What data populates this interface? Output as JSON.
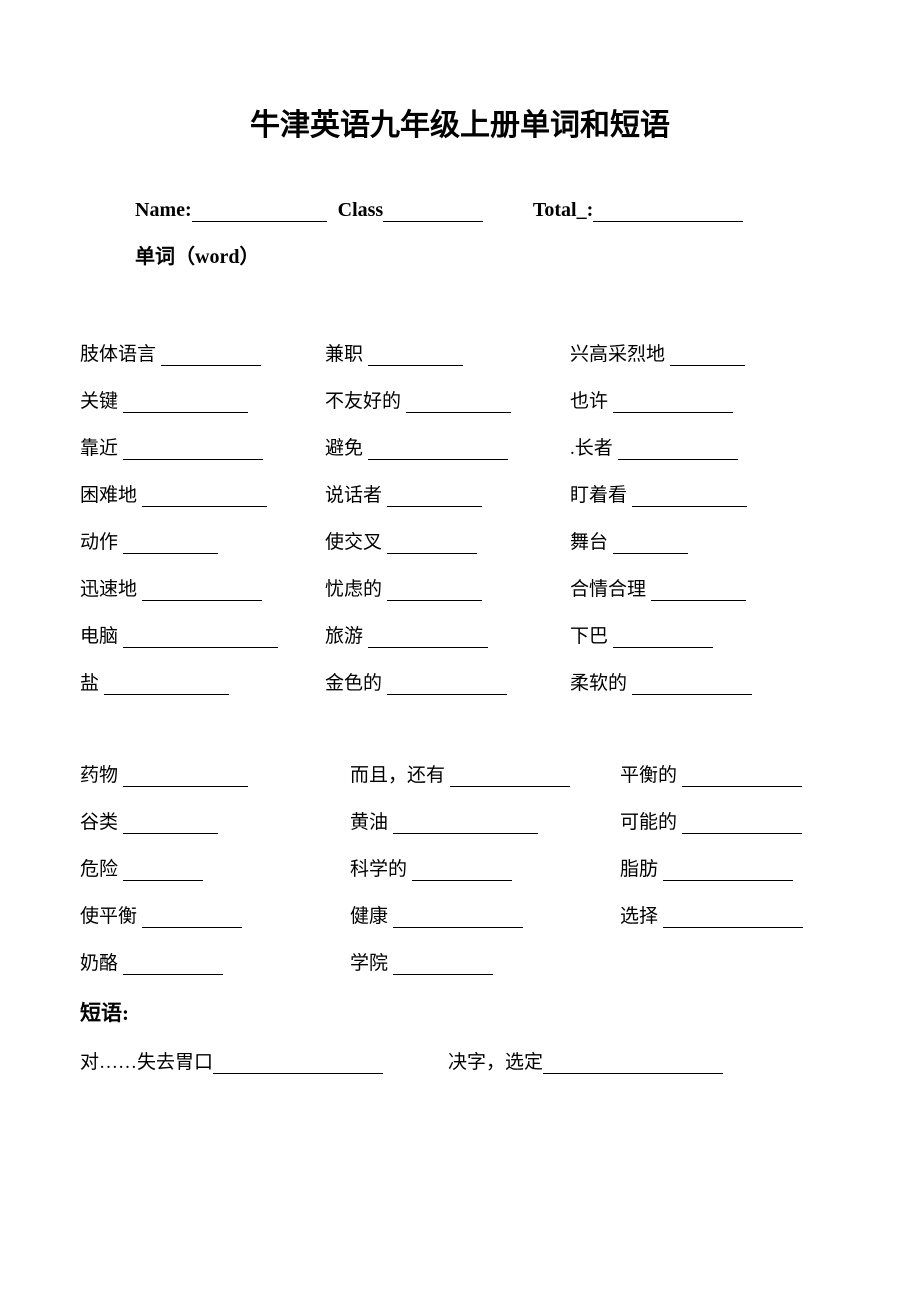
{
  "title": "牛津英语九年级上册单词和短语",
  "header": {
    "name_label": "Name:",
    "class_label": "Class",
    "total_label": "Total_:"
  },
  "subheading": "单词（word）",
  "block1": {
    "rows": [
      [
        "肢体语言",
        "兼职",
        "兴高采烈地"
      ],
      [
        "关键",
        "不友好的",
        "也许"
      ],
      [
        "靠近",
        "避免",
        ".长者"
      ],
      [
        "困难地",
        "说话者",
        "盯着看"
      ],
      [
        "动作",
        "使交叉",
        "舞台"
      ],
      [
        "迅速地",
        "忧虑的",
        "合情合理"
      ],
      [
        "电脑",
        "旅游",
        "下巴"
      ],
      [
        "盐",
        "金色的",
        "柔软的"
      ]
    ],
    "underline_widths": [
      [
        100,
        95,
        75
      ],
      [
        125,
        105,
        120
      ],
      [
        140,
        140,
        120
      ],
      [
        125,
        95,
        115
      ],
      [
        95,
        90,
        75
      ],
      [
        120,
        95,
        95
      ],
      [
        155,
        120,
        100
      ],
      [
        125,
        120,
        120
      ]
    ]
  },
  "block2": {
    "rows": [
      [
        "药物",
        "而且，还有",
        "平衡的"
      ],
      [
        "谷类",
        "黄油",
        "可能的"
      ],
      [
        "危险",
        "科学的",
        "脂肪"
      ],
      [
        "使平衡",
        "健康",
        "选择"
      ],
      [
        "奶酪",
        "学院",
        ""
      ]
    ],
    "underline_widths": [
      [
        125,
        120,
        120
      ],
      [
        95,
        145,
        120
      ],
      [
        80,
        100,
        130
      ],
      [
        100,
        130,
        140
      ],
      [
        100,
        100,
        0
      ]
    ],
    "col_offsets": [
      0,
      20,
      30
    ]
  },
  "phrases": {
    "label": "短语:",
    "items": [
      {
        "text": "对……失去胃口",
        "ul": 170
      },
      {
        "text": "决字，选定",
        "ul": 180
      }
    ],
    "gap": 65
  },
  "colors": {
    "text": "#000000",
    "background": "#ffffff"
  },
  "fonts": {
    "title_size": 30,
    "body_size": 19,
    "header_size": 20
  }
}
